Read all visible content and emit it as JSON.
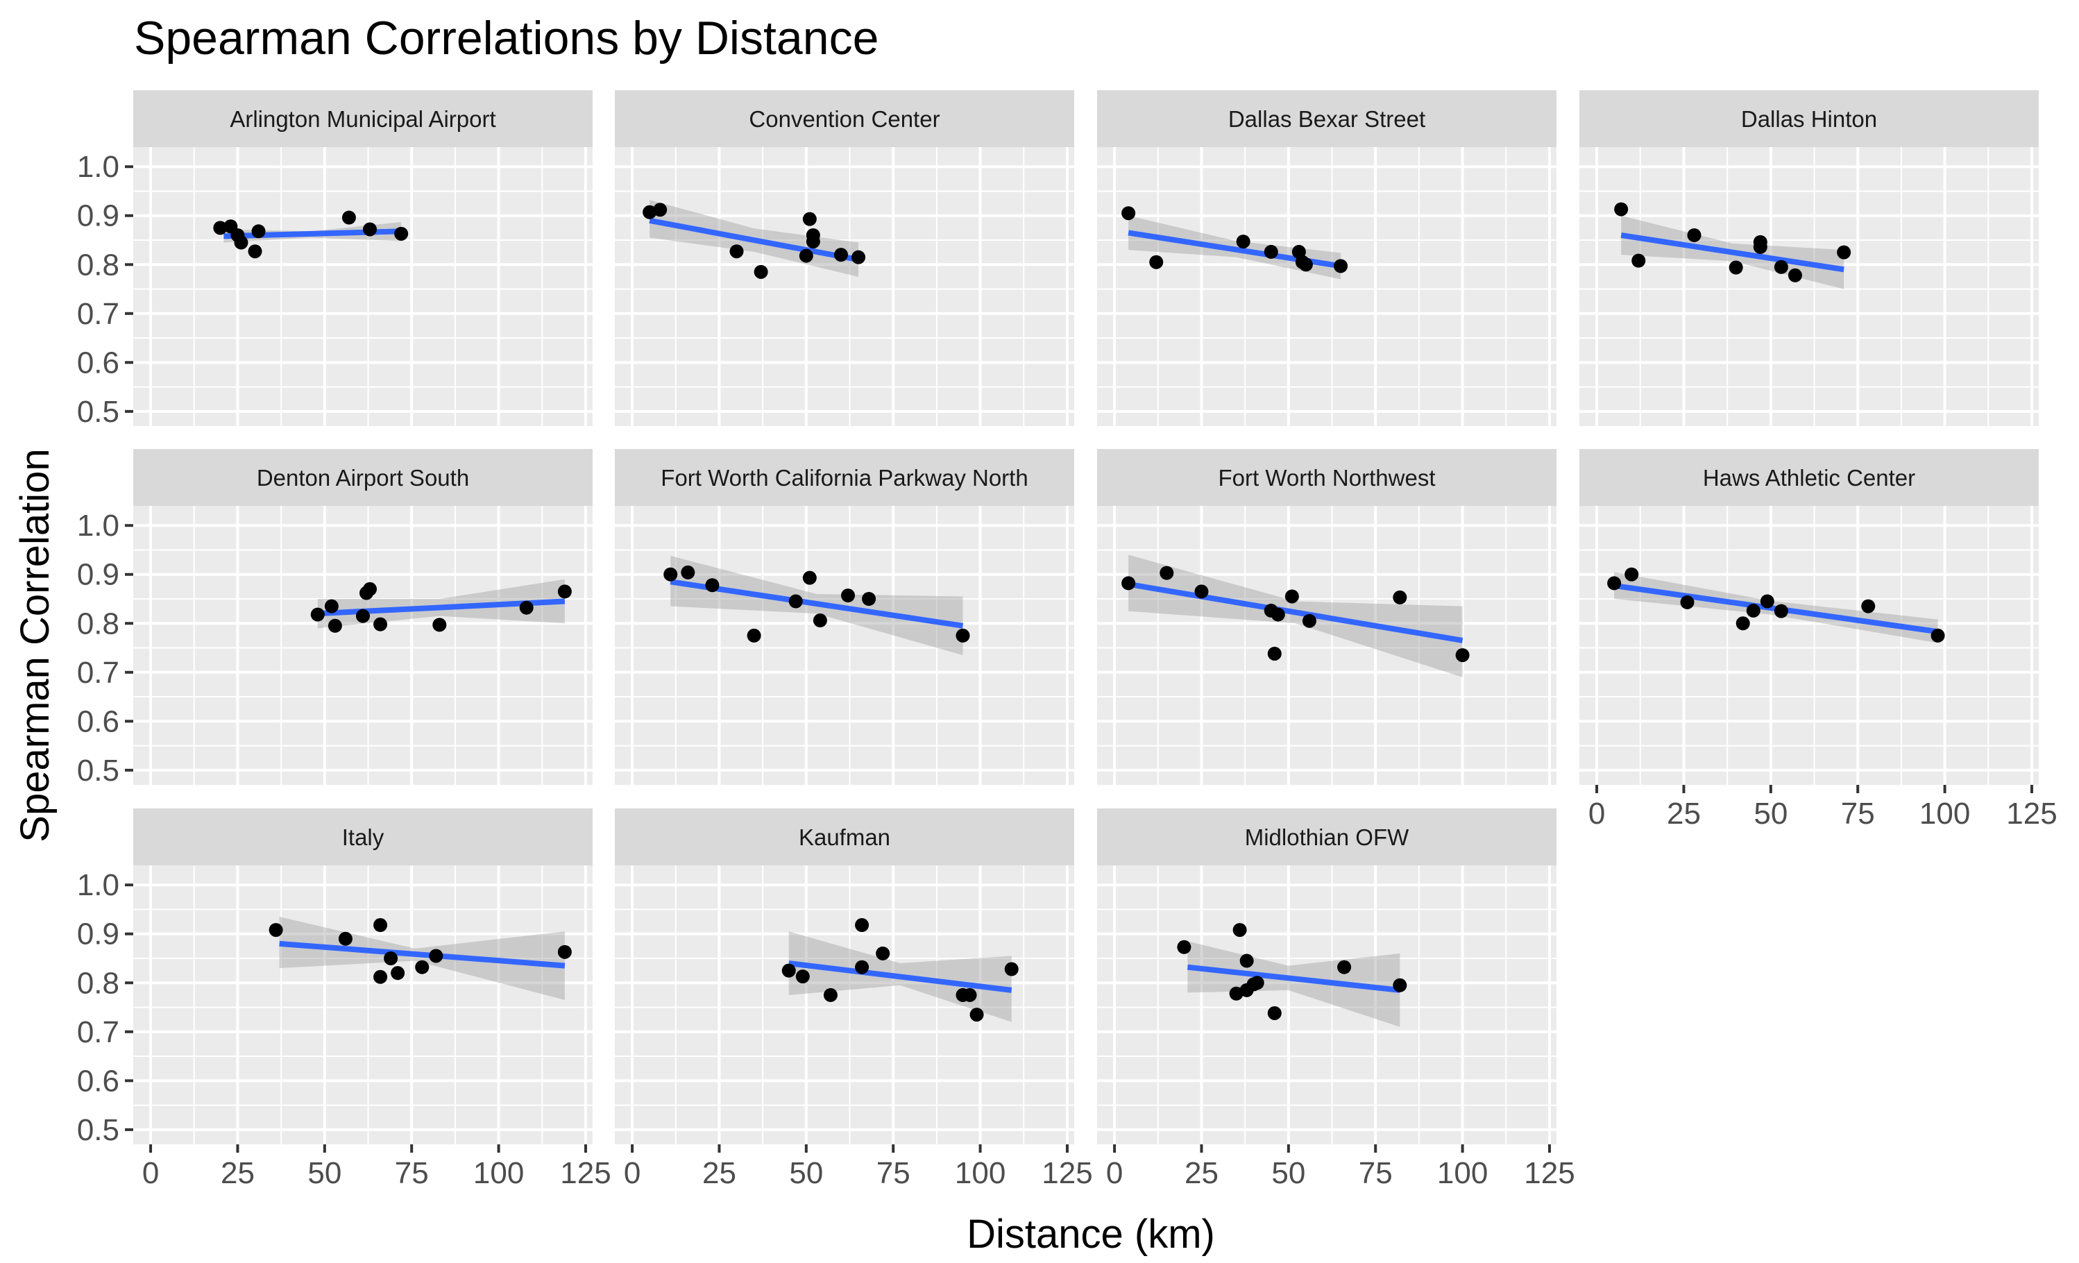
{
  "chart_data": {
    "type": "scatter",
    "title": "Spearman Correlations by Distance",
    "xlabel": "Distance (km)",
    "ylabel": "Spearman Correlation",
    "xlim": [
      -5,
      127
    ],
    "ylim": [
      0.47,
      1.04
    ],
    "x_ticks": [
      0,
      25,
      50,
      75,
      100,
      125
    ],
    "x_tick_labels": [
      "0",
      "25",
      "50",
      "75",
      "100",
      "125"
    ],
    "y_ticks": [
      0.5,
      0.6,
      0.7,
      0.8,
      0.9,
      1.0
    ],
    "y_tick_labels": [
      "0.5",
      "0.6",
      "0.7",
      "0.8",
      "0.9",
      "1.0"
    ],
    "grid": true,
    "smoother": "lm",
    "colors": {
      "fit": "#3366ff",
      "band": "#999999",
      "point": "#000000",
      "panel": "#ebebeb",
      "strip": "#d9d9d9"
    },
    "panels": [
      {
        "name": "Arlington Municipal Airport",
        "points": [
          [
            20,
            0.875
          ],
          [
            23,
            0.878
          ],
          [
            25,
            0.86
          ],
          [
            26,
            0.845
          ],
          [
            30,
            0.827
          ],
          [
            31,
            0.868
          ],
          [
            57,
            0.896
          ],
          [
            63,
            0.872
          ],
          [
            72,
            0.863
          ]
        ],
        "fit": [
          [
            21,
            0.858
          ],
          [
            72,
            0.868
          ]
        ],
        "band": [
          [
            21,
            0.845,
            0.872
          ],
          [
            46,
            0.855,
            0.868
          ],
          [
            72,
            0.848,
            0.887
          ]
        ]
      },
      {
        "name": "Convention Center",
        "points": [
          [
            5,
            0.907
          ],
          [
            8,
            0.912
          ],
          [
            30,
            0.827
          ],
          [
            37,
            0.785
          ],
          [
            50,
            0.818
          ],
          [
            51,
            0.893
          ],
          [
            52,
            0.86
          ],
          [
            52,
            0.847
          ],
          [
            60,
            0.82
          ],
          [
            65,
            0.815
          ]
        ],
        "fit": [
          [
            5,
            0.89
          ],
          [
            65,
            0.81
          ]
        ],
        "band": [
          [
            5,
            0.855,
            0.932
          ],
          [
            35,
            0.826,
            0.874
          ],
          [
            65,
            0.775,
            0.845
          ]
        ]
      },
      {
        "name": "Dallas Bexar Street",
        "points": [
          [
            4,
            0.905
          ],
          [
            12,
            0.805
          ],
          [
            37,
            0.847
          ],
          [
            45,
            0.826
          ],
          [
            53,
            0.826
          ],
          [
            54,
            0.805
          ],
          [
            55,
            0.8
          ],
          [
            65,
            0.797
          ]
        ],
        "fit": [
          [
            4,
            0.865
          ],
          [
            65,
            0.797
          ]
        ],
        "band": [
          [
            4,
            0.83,
            0.9
          ],
          [
            35,
            0.815,
            0.848
          ],
          [
            65,
            0.77,
            0.824
          ]
        ]
      },
      {
        "name": "Dallas Hinton",
        "points": [
          [
            7,
            0.913
          ],
          [
            12,
            0.808
          ],
          [
            28,
            0.86
          ],
          [
            40,
            0.794
          ],
          [
            47,
            0.846
          ],
          [
            47,
            0.836
          ],
          [
            53,
            0.795
          ],
          [
            57,
            0.778
          ],
          [
            71,
            0.825
          ]
        ],
        "fit": [
          [
            7,
            0.86
          ],
          [
            71,
            0.79
          ]
        ],
        "band": [
          [
            7,
            0.82,
            0.9
          ],
          [
            39,
            0.807,
            0.843
          ],
          [
            71,
            0.75,
            0.83
          ]
        ]
      },
      {
        "name": "Denton Airport South",
        "points": [
          [
            48,
            0.818
          ],
          [
            52,
            0.835
          ],
          [
            53,
            0.795
          ],
          [
            61,
            0.815
          ],
          [
            62,
            0.862
          ],
          [
            63,
            0.87
          ],
          [
            66,
            0.798
          ],
          [
            83,
            0.797
          ],
          [
            108,
            0.832
          ],
          [
            119,
            0.865
          ]
        ],
        "fit": [
          [
            48,
            0.82
          ],
          [
            119,
            0.845
          ]
        ],
        "band": [
          [
            48,
            0.79,
            0.85
          ],
          [
            83,
            0.815,
            0.85
          ],
          [
            119,
            0.8,
            0.89
          ]
        ]
      },
      {
        "name": "Fort Worth California Parkway North",
        "points": [
          [
            11,
            0.9
          ],
          [
            16,
            0.904
          ],
          [
            23,
            0.878
          ],
          [
            35,
            0.775
          ],
          [
            47,
            0.845
          ],
          [
            51,
            0.893
          ],
          [
            54,
            0.806
          ],
          [
            62,
            0.857
          ],
          [
            68,
            0.85
          ],
          [
            95,
            0.775
          ]
        ],
        "fit": [
          [
            11,
            0.885
          ],
          [
            95,
            0.795
          ]
        ],
        "band": [
          [
            11,
            0.835,
            0.938
          ],
          [
            53,
            0.82,
            0.86
          ],
          [
            95,
            0.735,
            0.855
          ]
        ]
      },
      {
        "name": "Fort Worth Northwest",
        "points": [
          [
            4,
            0.882
          ],
          [
            15,
            0.903
          ],
          [
            25,
            0.865
          ],
          [
            45,
            0.826
          ],
          [
            46,
            0.738
          ],
          [
            47,
            0.818
          ],
          [
            51,
            0.855
          ],
          [
            56,
            0.805
          ],
          [
            82,
            0.853
          ],
          [
            100,
            0.735
          ]
        ],
        "fit": [
          [
            4,
            0.88
          ],
          [
            100,
            0.765
          ]
        ],
        "band": [
          [
            4,
            0.825,
            0.94
          ],
          [
            52,
            0.8,
            0.845
          ],
          [
            100,
            0.69,
            0.835
          ]
        ]
      },
      {
        "name": "Haws Athletic Center",
        "points": [
          [
            5,
            0.882
          ],
          [
            10,
            0.9
          ],
          [
            26,
            0.843
          ],
          [
            42,
            0.8
          ],
          [
            45,
            0.826
          ],
          [
            49,
            0.845
          ],
          [
            53,
            0.825
          ],
          [
            78,
            0.835
          ],
          [
            98,
            0.775
          ]
        ],
        "fit": [
          [
            5,
            0.877
          ],
          [
            98,
            0.783
          ]
        ],
        "band": [
          [
            5,
            0.85,
            0.905
          ],
          [
            50,
            0.818,
            0.846
          ],
          [
            98,
            0.76,
            0.808
          ]
        ]
      },
      {
        "name": "Italy",
        "points": [
          [
            36,
            0.908
          ],
          [
            56,
            0.89
          ],
          [
            66,
            0.918
          ],
          [
            66,
            0.812
          ],
          [
            69,
            0.85
          ],
          [
            71,
            0.82
          ],
          [
            78,
            0.832
          ],
          [
            82,
            0.855
          ],
          [
            119,
            0.863
          ]
        ],
        "fit": [
          [
            37,
            0.88
          ],
          [
            119,
            0.835
          ]
        ],
        "band": [
          [
            37,
            0.83,
            0.935
          ],
          [
            76,
            0.845,
            0.87
          ],
          [
            119,
            0.765,
            0.905
          ]
        ]
      },
      {
        "name": "Kaufman",
        "points": [
          [
            45,
            0.825
          ],
          [
            49,
            0.813
          ],
          [
            57,
            0.775
          ],
          [
            66,
            0.918
          ],
          [
            66,
            0.832
          ],
          [
            72,
            0.86
          ],
          [
            95,
            0.775
          ],
          [
            97,
            0.775
          ],
          [
            99,
            0.735
          ],
          [
            109,
            0.828
          ]
        ],
        "fit": [
          [
            45,
            0.84
          ],
          [
            109,
            0.785
          ]
        ],
        "band": [
          [
            45,
            0.775,
            0.905
          ],
          [
            77,
            0.795,
            0.84
          ],
          [
            109,
            0.72,
            0.855
          ]
        ]
      },
      {
        "name": "Midlothian OFW",
        "points": [
          [
            20,
            0.873
          ],
          [
            35,
            0.778
          ],
          [
            36,
            0.908
          ],
          [
            38,
            0.845
          ],
          [
            38,
            0.785
          ],
          [
            40,
            0.797
          ],
          [
            41,
            0.8
          ],
          [
            46,
            0.738
          ],
          [
            66,
            0.832
          ],
          [
            82,
            0.795
          ]
        ],
        "fit": [
          [
            21,
            0.832
          ],
          [
            82,
            0.785
          ]
        ],
        "band": [
          [
            21,
            0.78,
            0.885
          ],
          [
            50,
            0.785,
            0.835
          ],
          [
            82,
            0.71,
            0.86
          ]
        ]
      }
    ]
  }
}
